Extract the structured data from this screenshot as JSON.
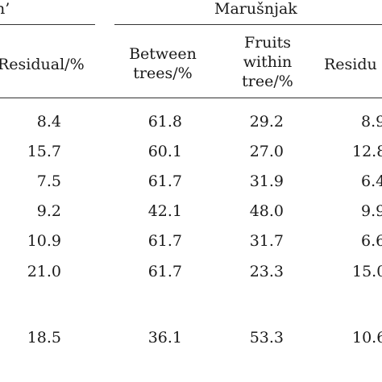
{
  "group_left_label": "n’",
  "group_right_label": "Marušnjak",
  "columns": {
    "left_residual": "Residual/%",
    "between_trees": [
      "Between",
      "trees/%"
    ],
    "fruits_within": [
      "Fruits",
      "within",
      "tree/%"
    ],
    "right_residual": "Residu"
  },
  "rows": [
    {
      "left_residual": "8.4",
      "between": "61.8",
      "fruits": "29.2",
      "right_residual": "8.9"
    },
    {
      "left_residual": "15.7",
      "between": "60.1",
      "fruits": "27.0",
      "right_residual": "12.8"
    },
    {
      "left_residual": "7.5",
      "between": "61.7",
      "fruits": "31.9",
      "right_residual": "6.4"
    },
    {
      "left_residual": "9.2",
      "between": "42.1",
      "fruits": "48.0",
      "right_residual": "9.9"
    },
    {
      "left_residual": "10.9",
      "between": "61.7",
      "fruits": "31.7",
      "right_residual": "6.6"
    },
    {
      "left_residual": "21.0",
      "between": "61.7",
      "fruits": "23.3",
      "right_residual": "15.0"
    },
    {
      "left_residual": "18.5",
      "between": "36.1",
      "fruits": "53.3",
      "right_residual": "10.6"
    }
  ]
}
